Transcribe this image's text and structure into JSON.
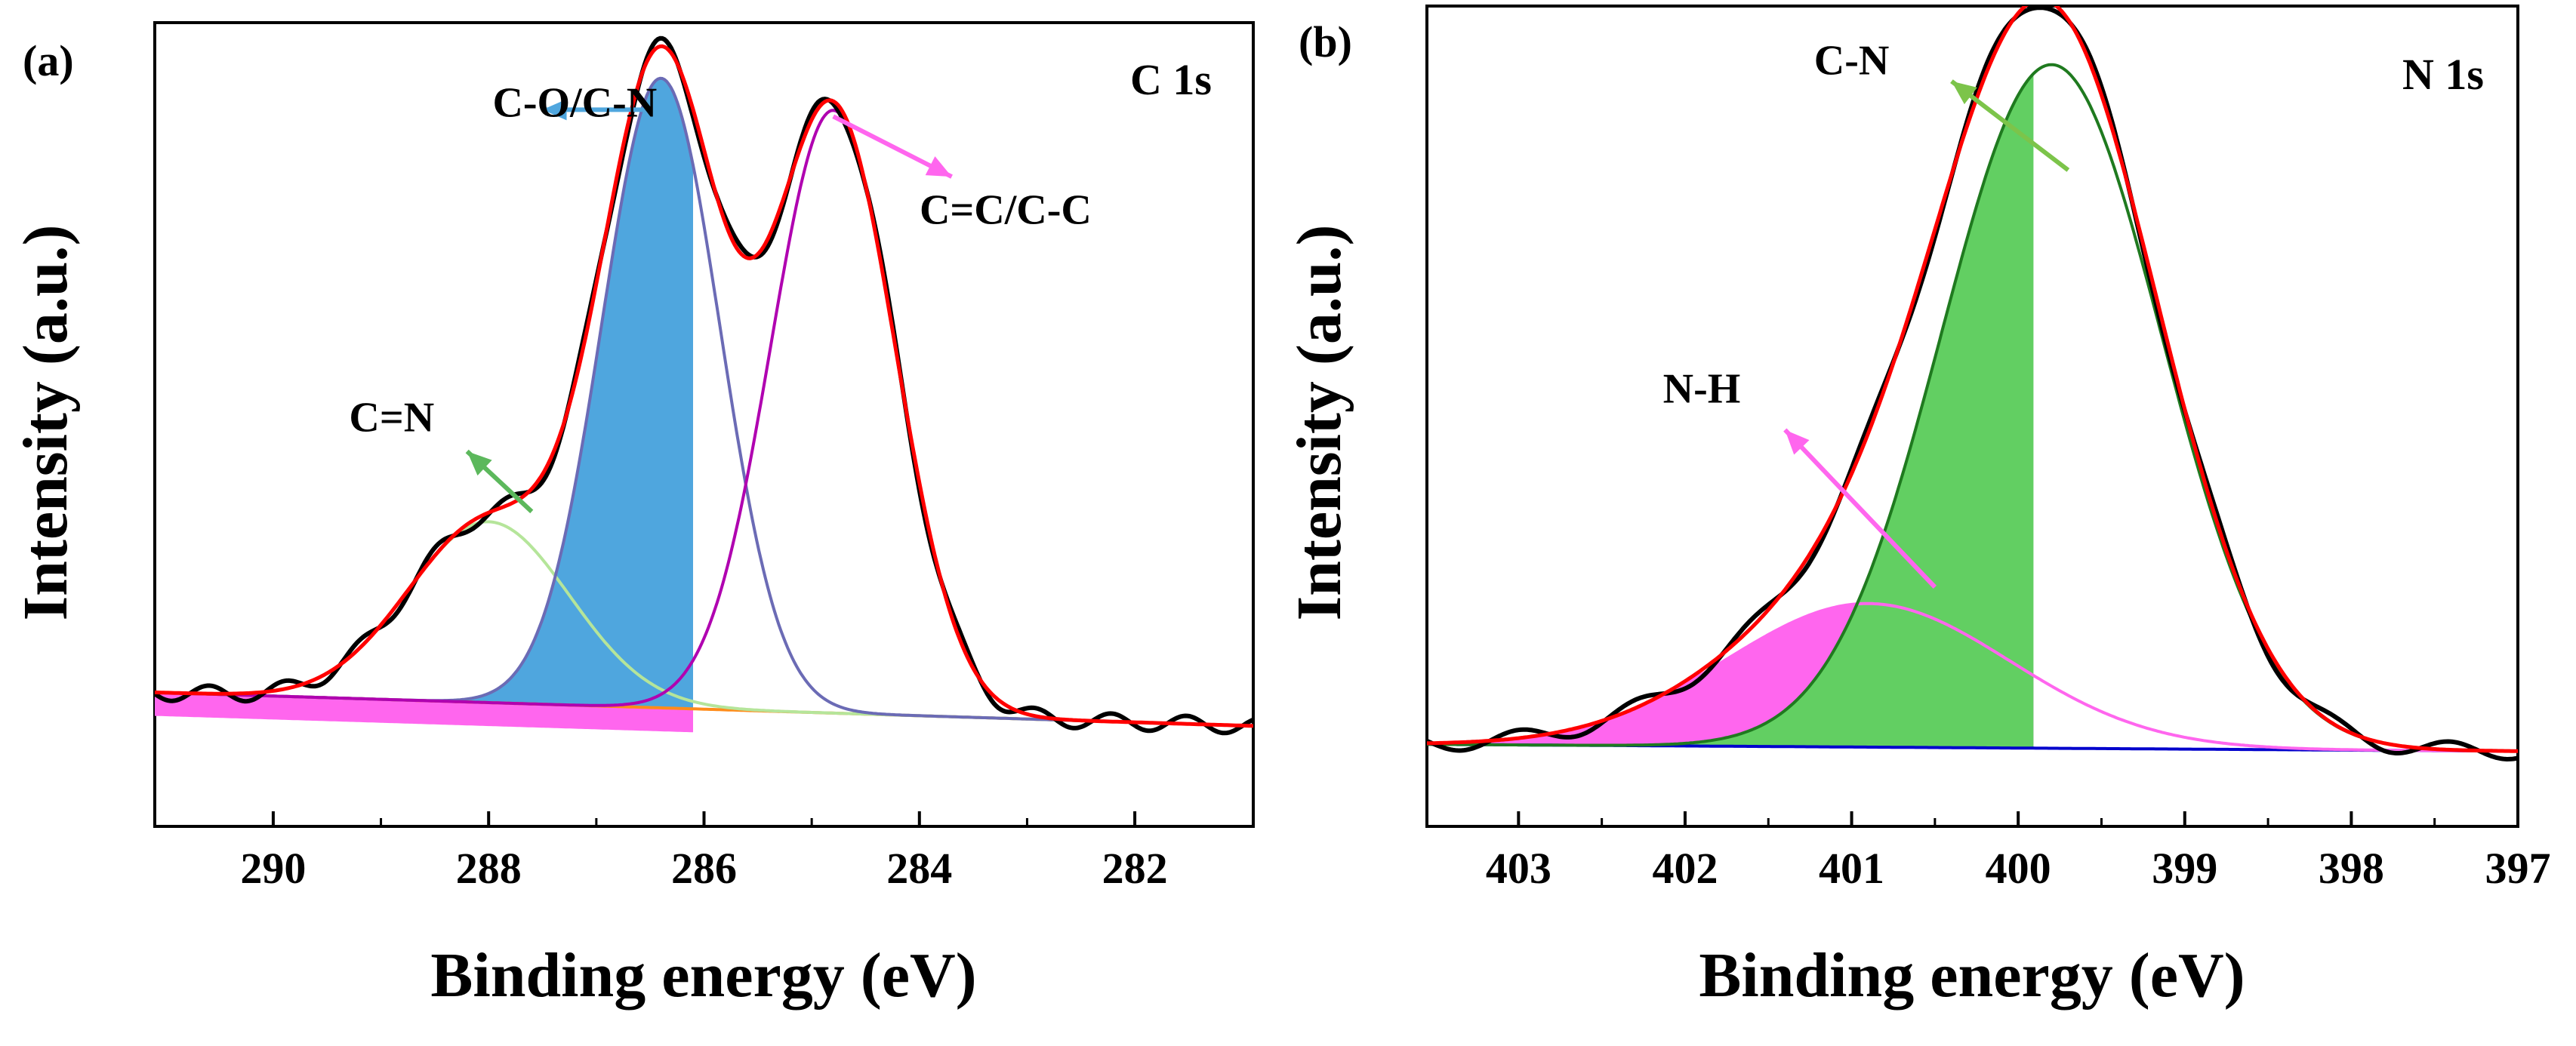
{
  "figure": {
    "panels": [
      {
        "label": "(a)",
        "tag": "C 1s"
      },
      {
        "label": "(b)",
        "tag": "N 1s"
      }
    ]
  },
  "chart_data": [
    {
      "type": "line",
      "panel": "(a)",
      "title": "C 1s",
      "xlabel": "Binding energy (eV)",
      "ylabel": "Intensity (a.u.)",
      "xlim": [
        291.1,
        280.9
      ],
      "x_reversed": true,
      "ylim": [
        -0.15,
        1.05
      ],
      "yticks_shown": false,
      "xticks": [
        290,
        288,
        286,
        284,
        282
      ],
      "baseline": {
        "x": [
          291.1,
          280.9
        ],
        "y": [
          0.05,
          0.0
        ]
      },
      "series": [
        {
          "role": "peak",
          "center": 288.0,
          "height": 0.27,
          "sigma": 0.75,
          "color": "#b5e59a",
          "filled": false
        },
        {
          "role": "peak",
          "center": 286.4,
          "height": 0.94,
          "sigma": 0.55,
          "color": "#6b6bb5",
          "filled": true,
          "fill_color": "#4fa6de",
          "fill_cutoff": 286.1
        },
        {
          "role": "peak",
          "center": 284.8,
          "height": 0.9,
          "sigma": 0.58,
          "color": "#b000b0",
          "filled": false
        },
        {
          "role": "fit_envelope",
          "color": "#ff0000"
        },
        {
          "role": "raw_data",
          "color": "#000000"
        },
        {
          "role": "background_fill",
          "color": "#ff66ee",
          "fill_cutoff": 286.1
        }
      ],
      "annotations": [
        {
          "text": "C-O/C-N",
          "x": 287.2,
          "y": 0.91,
          "arrow_from": [
            286.4,
            0.92
          ],
          "arrow_to": [
            287.5,
            0.92
          ],
          "arrow_color": "#4fa6de"
        },
        {
          "text": "C=C/C-C",
          "x": 283.2,
          "y": 0.75,
          "arrow_from": [
            284.8,
            0.91
          ],
          "arrow_to": [
            283.7,
            0.82
          ],
          "arrow_color": "#ff66ee"
        },
        {
          "text": "C=N",
          "x": 288.9,
          "y": 0.44,
          "arrow_from": [
            287.6,
            0.32
          ],
          "arrow_to": [
            288.2,
            0.41
          ],
          "arrow_color": "#5cb85c"
        }
      ]
    },
    {
      "type": "line",
      "panel": "(b)",
      "title": "N 1s",
      "xlabel": "Binding energy (eV)",
      "ylabel": "Intensity (a.u.)",
      "xlim": [
        403.55,
        397.0
      ],
      "x_reversed": true,
      "ylim": [
        -0.12,
        1.08
      ],
      "yticks_shown": false,
      "xticks": [
        403,
        402,
        401,
        400,
        399,
        398,
        397
      ],
      "baseline": {
        "x": [
          403.55,
          397.0
        ],
        "y": [
          0.0,
          -0.01
        ]
      },
      "series": [
        {
          "role": "peak",
          "center": 400.9,
          "height": 0.21,
          "sigma": 0.85,
          "color": "#ff66ee",
          "filled": true,
          "fill_color": "#ff66ee",
          "fill_cutoff": 399.9
        },
        {
          "role": "peak",
          "center": 399.8,
          "height": 1.0,
          "sigma": 0.66,
          "color": "#1f7a1f",
          "filled": true,
          "fill_color": "#62cf62",
          "fill_cutoff": 399.9
        },
        {
          "role": "fit_envelope",
          "color": "#ff0000"
        },
        {
          "role": "raw_data",
          "color": "#000000"
        },
        {
          "role": "baseline",
          "color": "#0000cc"
        }
      ],
      "annotations": [
        {
          "text": "C-N",
          "x": 401.0,
          "y": 0.98,
          "arrow_from": [
            399.7,
            0.84
          ],
          "arrow_to": [
            400.4,
            0.97
          ],
          "arrow_color": "#7cc44a"
        },
        {
          "text": "N-H",
          "x": 401.9,
          "y": 0.5,
          "arrow_from": [
            400.5,
            0.23
          ],
          "arrow_to": [
            401.4,
            0.46
          ],
          "arrow_color": "#ff66ee"
        }
      ]
    }
  ]
}
